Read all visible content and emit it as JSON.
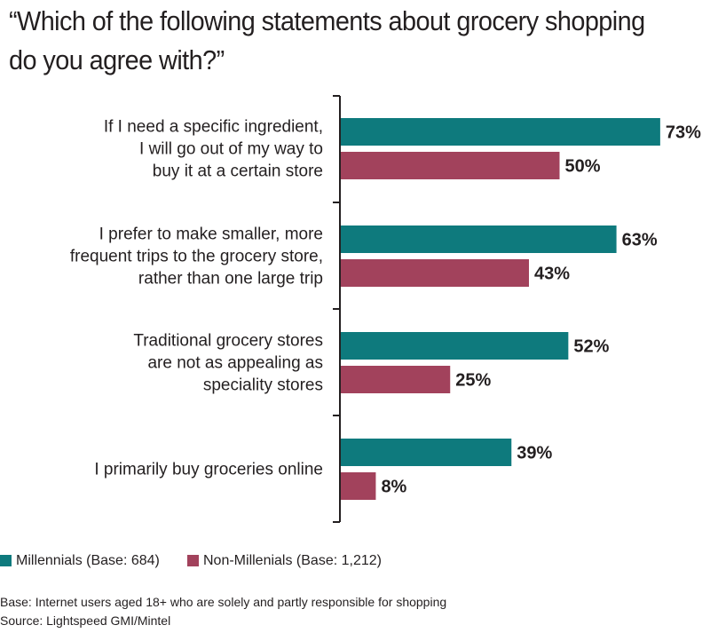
{
  "chart_data": {
    "type": "bar",
    "orientation": "horizontal",
    "title": "“Which of the following statements about grocery shopping\n do you agree with?”",
    "categories": [
      "If I need a specific ingredient,\nI will go out of my way to\nbuy it at a certain store",
      "I prefer to make smaller, more\nfrequent trips to the grocery store,\nrather than one large trip",
      "Traditional grocery stores\nare not as appealing as\nspeciality stores",
      "I primarily buy groceries online"
    ],
    "series": [
      {
        "name": "Millennials (Base: 684)",
        "values": [
          73,
          63,
          52,
          39
        ],
        "labels": [
          "73%",
          "63%",
          "52%",
          "39%"
        ],
        "color": "#0e7a7d"
      },
      {
        "name": "Non-Millenials (Base: 1,212)",
        "values": [
          50,
          43,
          25,
          8
        ],
        "labels": [
          "50%",
          "43%",
          "25%",
          "8%"
        ],
        "color": "#a2425c"
      }
    ],
    "xlim": [
      0,
      100
    ],
    "unit": "%",
    "legend_position": "bottom-left",
    "grid": false
  },
  "notes": {
    "base": "Base: Internet users aged 18+ who are solely and partly responsible for shopping",
    "source": "Source: Lightspeed GMI/Mintel"
  }
}
